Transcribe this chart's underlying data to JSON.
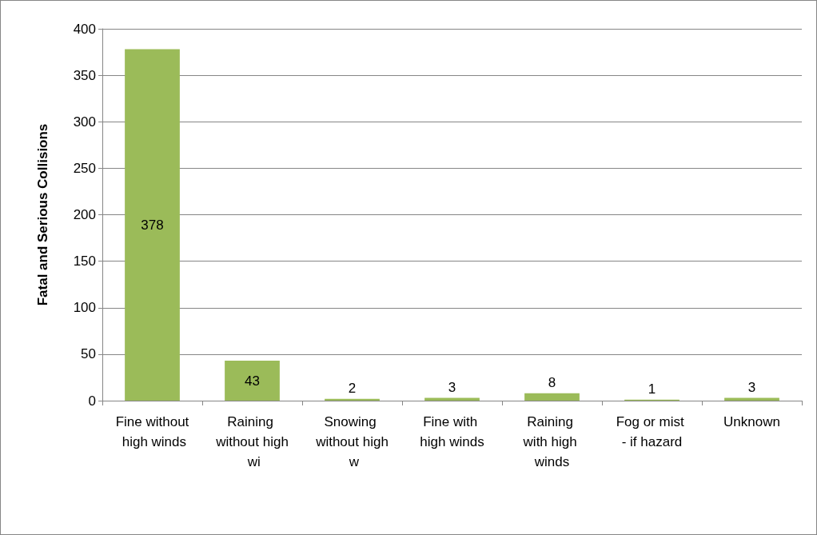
{
  "chart_data": {
    "type": "bar",
    "ylabel": "Fatal and Serious Collisions",
    "categories": [
      "Fine without high winds",
      "Raining without high wi",
      "Snowing without high w",
      "Fine with high winds",
      "Raining with high winds",
      "Fog or mist - if hazard",
      "Unknown"
    ],
    "values": [
      378,
      43,
      2,
      3,
      8,
      1,
      3
    ],
    "color": "#9bbb59",
    "ylim": [
      0,
      400
    ],
    "yticks": [
      0,
      50,
      100,
      150,
      200,
      250,
      300,
      350,
      400
    ],
    "grid": "y",
    "data_labels": true
  }
}
